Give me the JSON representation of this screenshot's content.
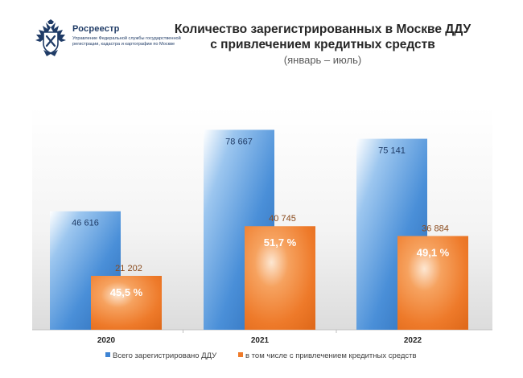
{
  "logo": {
    "name": "Росреестр",
    "description": "Управление Федеральной службы государственной регистрации, кадастра и картографии по Москве"
  },
  "header": {
    "title_line1": "Количество зарегистрированных в Москве ДДУ",
    "title_line2": "с привлечением кредитных средств",
    "subtitle": "(январь – июль)"
  },
  "chart_data": {
    "type": "bar",
    "categories": [
      "2020",
      "2021",
      "2022"
    ],
    "series": [
      {
        "name": "Всего зарегистрировано ДДУ",
        "values": [
          46616,
          78667,
          75141
        ],
        "labels": [
          "46 616",
          "78 667",
          "75 141"
        ],
        "color": "#3e84d4"
      },
      {
        "name": "в том числе с привлечением кредитных средств",
        "values": [
          21202,
          40745,
          36884
        ],
        "labels": [
          "21 202",
          "40 745",
          "36 884"
        ],
        "share_labels": [
          "45,5 %",
          "51,7 %",
          "49,1 %"
        ],
        "color": "#ef7b2a"
      }
    ],
    "grid": false,
    "legend_position": "bottom",
    "colors": {
      "total_label": "#1f3b66",
      "credit_label": "#8a4a1c"
    }
  }
}
